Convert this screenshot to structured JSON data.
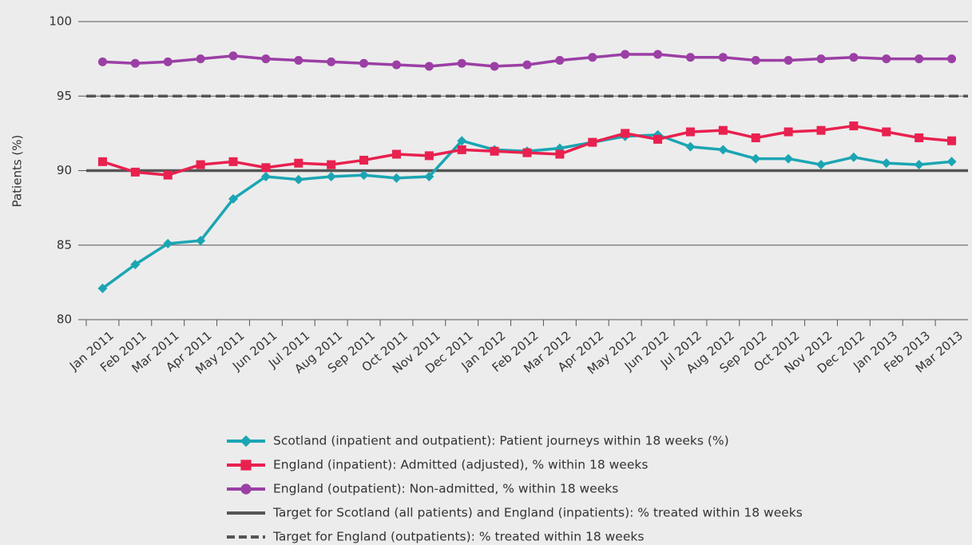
{
  "chart_data": {
    "type": "line",
    "y_label": "Patients (%)",
    "categories": [
      "Jan 2011",
      "Feb 2011",
      "Mar 2011",
      "Apr 2011",
      "May 2011",
      "Jun 2011",
      "Jul 2011",
      "Aug 2011",
      "Sep 2011",
      "Oct 2011",
      "Nov 2011",
      "Dec 2011",
      "Jan 2012",
      "Feb 2012",
      "Mar 2012",
      "Apr 2012",
      "May 2012",
      "Jun 2012",
      "Jul 2012",
      "Aug 2012",
      "Sep 2012",
      "Oct 2012",
      "Nov 2012",
      "Dec 2012",
      "Jan 2013",
      "Feb 2013",
      "Mar 2013"
    ],
    "series": [
      {
        "name": "Scotland (inpatient and outpatient): Patient journeys within 18 weeks (%)",
        "color": "#1ba5b3",
        "marker": "diamond",
        "values": [
          82.1,
          83.7,
          85.1,
          85.3,
          88.1,
          89.6,
          89.4,
          89.6,
          89.7,
          89.5,
          89.6,
          92.0,
          91.4,
          91.3,
          91.5,
          91.9,
          92.3,
          92.4,
          91.6,
          91.4,
          90.8,
          90.8,
          90.4,
          90.9,
          90.5,
          90.4,
          90.6
        ]
      },
      {
        "name": "England (inpatient): Admitted (adjusted), % within 18 weeks",
        "color": "#e8214f",
        "marker": "square",
        "values": [
          90.6,
          89.9,
          89.7,
          90.4,
          90.6,
          90.2,
          90.5,
          90.4,
          90.7,
          91.1,
          91.0,
          91.4,
          91.3,
          91.2,
          91.1,
          91.9,
          92.5,
          92.1,
          92.6,
          92.7,
          92.2,
          92.6,
          92.7,
          93.0,
          92.6,
          92.2,
          92.0
        ]
      },
      {
        "name": "England (outpatient): Non-admitted, % within 18 weeks",
        "color": "#9b3fa5",
        "marker": "circle",
        "values": [
          97.3,
          97.2,
          97.3,
          97.5,
          97.7,
          97.5,
          97.4,
          97.3,
          97.2,
          97.1,
          97.0,
          97.2,
          97.0,
          97.1,
          97.4,
          97.6,
          97.8,
          97.8,
          97.6,
          97.6,
          97.4,
          97.4,
          97.5,
          97.6,
          97.5,
          97.5,
          97.5
        ]
      }
    ],
    "reference_lines": [
      {
        "name": "Target for Scotland (all patients) and England (inpatients): % treated within 18 weeks",
        "value": 90,
        "color": "#555555",
        "style": "solid"
      },
      {
        "name": "Target for England (outpatients): % treated within 18 weeks",
        "value": 95,
        "color": "#555555",
        "style": "dashed"
      }
    ],
    "ylim": [
      80,
      100
    ],
    "yticks": [
      80,
      85,
      90,
      95,
      100
    ],
    "grid": true
  }
}
